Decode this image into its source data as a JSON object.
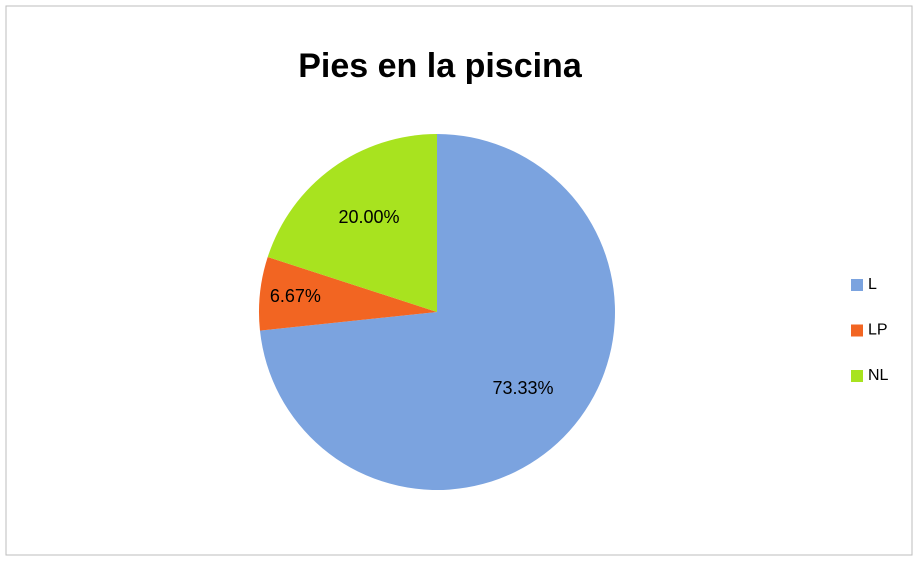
{
  "chart_data": {
    "type": "pie",
    "title": "Pies en la piscina",
    "categories": [
      "L",
      "LP",
      "NL"
    ],
    "values": [
      73.33,
      6.67,
      20.0
    ],
    "value_labels": [
      "73.33%",
      "6.67%",
      "20.00%"
    ],
    "colors": [
      "#7ba3df",
      "#f26522",
      "#a8e31f"
    ],
    "legend": "right"
  }
}
